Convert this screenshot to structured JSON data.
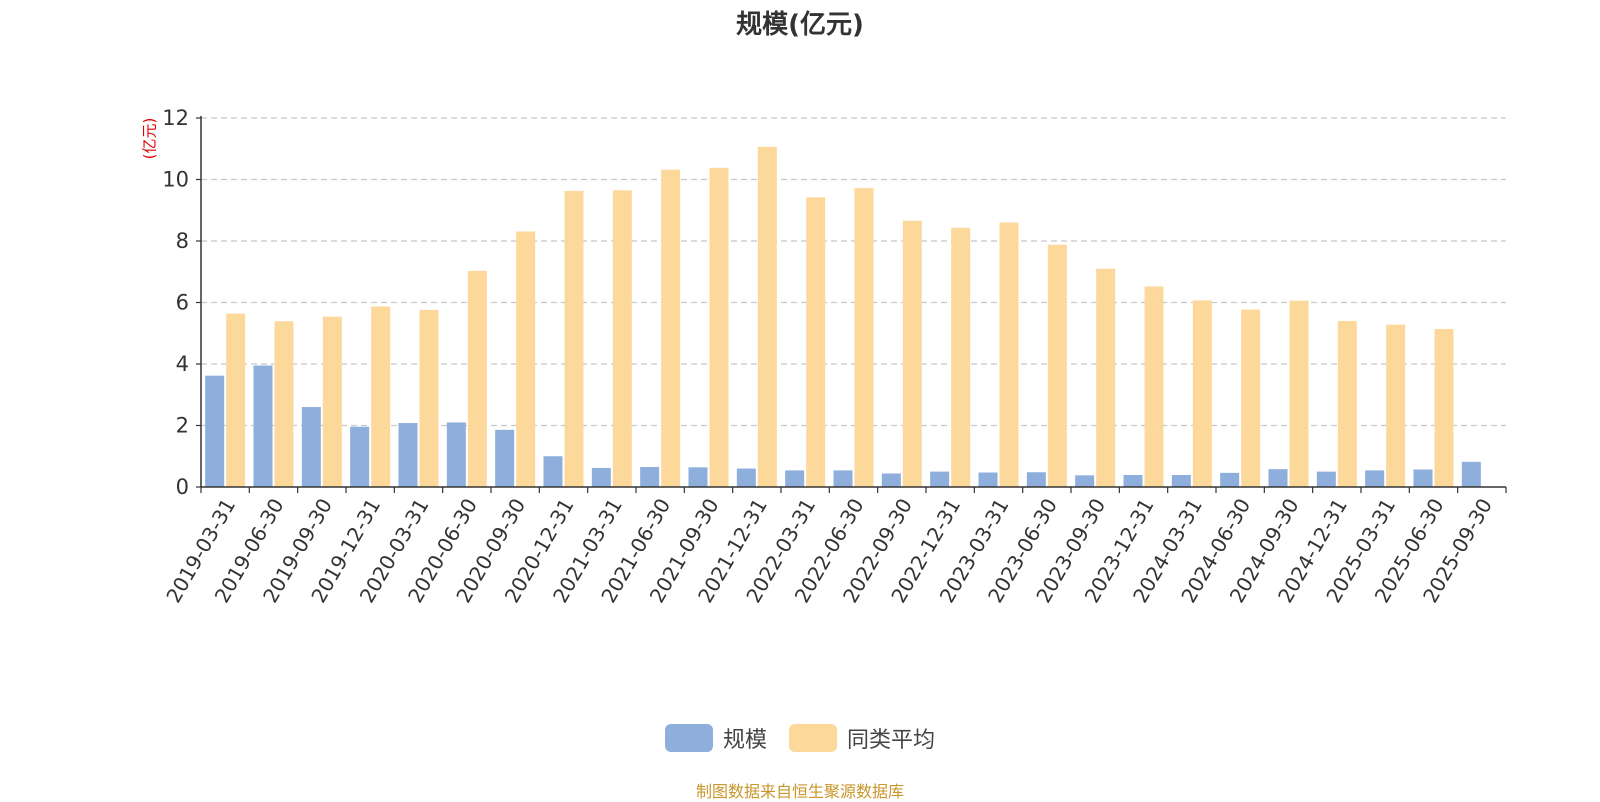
{
  "chart_data": {
    "type": "bar",
    "title": "规模(亿元)",
    "ylabel": "(亿元)",
    "ylim": [
      0,
      12
    ],
    "yticks": [
      0,
      2,
      4,
      6,
      8,
      10,
      12
    ],
    "grid": true,
    "legend_position": "bottom-center",
    "categories": [
      "2019-03-31",
      "2019-06-30",
      "2019-09-30",
      "2019-12-31",
      "2020-03-31",
      "2020-06-30",
      "2020-09-30",
      "2020-12-31",
      "2021-03-31",
      "2021-06-30",
      "2021-09-30",
      "2021-12-31",
      "2022-03-31",
      "2022-06-30",
      "2022-09-30",
      "2022-12-31",
      "2023-03-31",
      "2023-06-30",
      "2023-09-30",
      "2023-12-31",
      "2024-03-31",
      "2024-06-30",
      "2024-09-30",
      "2024-12-31",
      "2025-03-31",
      "2025-06-30",
      "2025-09-30"
    ],
    "series": [
      {
        "name": "规模",
        "color": "#8eaedc",
        "values": [
          3.62,
          3.95,
          2.6,
          1.96,
          2.08,
          2.1,
          1.86,
          1.0,
          0.62,
          0.65,
          0.64,
          0.6,
          0.54,
          0.54,
          0.44,
          0.5,
          0.47,
          0.48,
          0.38,
          0.39,
          0.39,
          0.46,
          0.58,
          0.5,
          0.54,
          0.57,
          0.82
        ]
      },
      {
        "name": "同类平均",
        "color": "#fdd89b",
        "values": [
          5.64,
          5.39,
          5.54,
          5.87,
          5.76,
          7.03,
          8.31,
          9.63,
          9.65,
          10.32,
          10.38,
          11.06,
          9.42,
          9.72,
          8.66,
          8.43,
          8.6,
          7.88,
          7.1,
          6.52,
          6.07,
          5.77,
          6.06,
          5.4,
          5.28,
          5.14,
          null
        ]
      }
    ]
  },
  "source_note": "制图数据来自恒生聚源数据库"
}
